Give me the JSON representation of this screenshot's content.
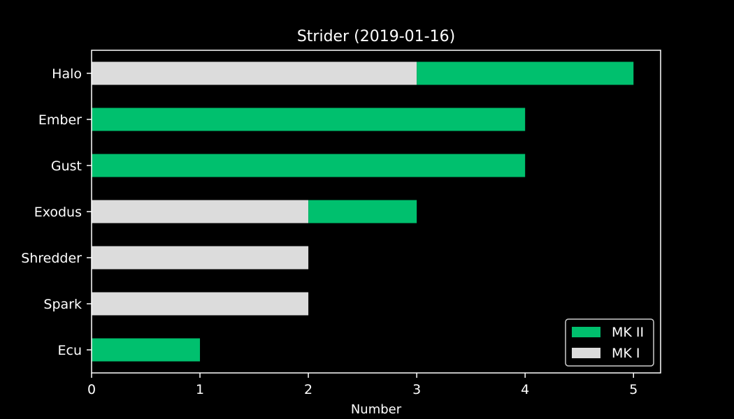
{
  "chart_data": {
    "type": "bar",
    "orientation": "horizontal",
    "stacked": true,
    "title": "Strider (2019-01-16)",
    "xlabel": "Number",
    "ylabel": "",
    "categories": [
      "Halo",
      "Ember",
      "Gust",
      "Exodus",
      "Shredder",
      "Spark",
      "Ecu"
    ],
    "series": [
      {
        "name": "MK I",
        "color": "#dcdcdc",
        "values": [
          3,
          0,
          0,
          2,
          2,
          2,
          0
        ]
      },
      {
        "name": "MK II",
        "color": "#00c06e",
        "values": [
          2,
          4,
          4,
          1,
          0,
          0,
          1
        ]
      }
    ],
    "xlim": [
      0,
      5.25
    ],
    "xticks": [
      "0",
      "1",
      "2",
      "3",
      "4",
      "5"
    ],
    "legend": {
      "position": "bottom-right",
      "order": [
        "MK II",
        "MK I"
      ]
    },
    "grid": false,
    "background": "#000000",
    "foreground": "#ffffff"
  }
}
